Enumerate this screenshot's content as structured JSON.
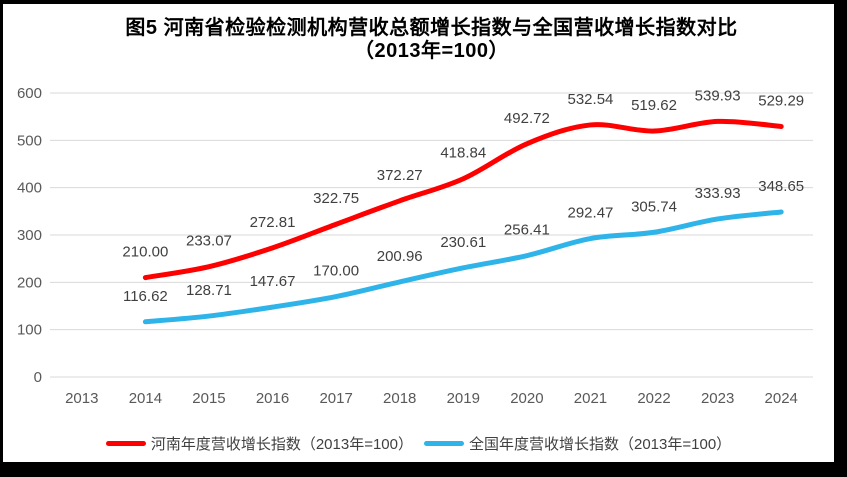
{
  "chart_data": {
    "type": "line",
    "title": "图5  河南省检验检测机构营收总额增长指数与全国营收增长指数对比",
    "subtitle": "（2013年=100）",
    "categories": [
      "2013",
      "2014",
      "2015",
      "2016",
      "2017",
      "2018",
      "2019",
      "2020",
      "2021",
      "2022",
      "2023",
      "2024"
    ],
    "series": [
      {
        "name": "河南年度营收增长指数（2013年=100）",
        "color": "#FE0000",
        "values": [
          null,
          210.0,
          233.07,
          272.81,
          322.75,
          372.27,
          418.84,
          492.72,
          532.54,
          519.62,
          539.93,
          529.29
        ]
      },
      {
        "name": "全国年度营收增长指数（2013年=100）",
        "color": "#2FB4E9",
        "values": [
          null,
          116.62,
          128.71,
          147.67,
          170.0,
          200.96,
          230.61,
          256.41,
          292.47,
          305.74,
          333.93,
          348.65
        ]
      }
    ],
    "y_ticks": [
      0,
      100,
      200,
      300,
      400,
      500,
      600
    ],
    "ylim": [
      0,
      600
    ],
    "grid": true,
    "legend_position": "bottom",
    "gridline_color": "#D9D9D9",
    "tick_label_color": "#595959",
    "data_label_color": "#404040",
    "label_decimals": 2
  }
}
